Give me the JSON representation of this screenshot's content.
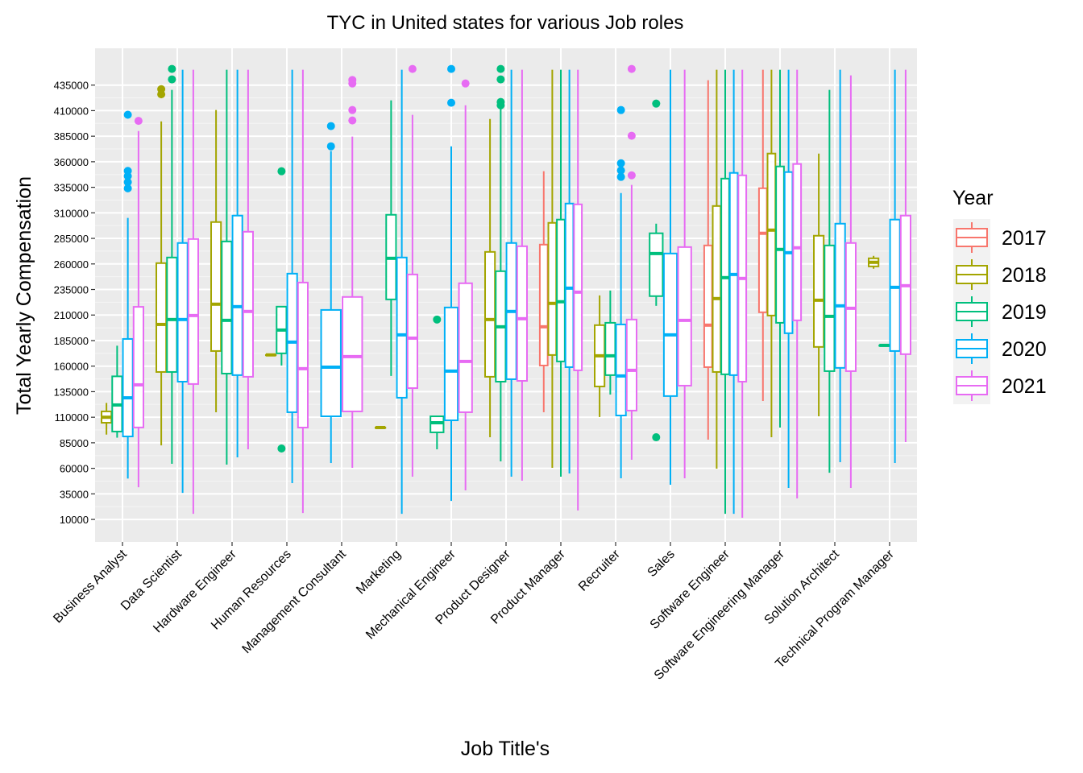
{
  "chart_data": {
    "type": "boxplot",
    "title": "TYC in United states for various Job roles",
    "x_label": "Job Title's",
    "y_label": "Total Yearly Compensation",
    "legend_title": "Year",
    "legend_position": "right",
    "grid": true,
    "categories": [
      "Business Analyst",
      "Data Scientist",
      "Hardware Engineer",
      "Human Resources",
      "Management Consultant",
      "Marketing",
      "Mechanical Engineer",
      "Product Designer",
      "Product Manager",
      "Recruiter",
      "Sales",
      "Software Engineer",
      "Software Engineering Manager",
      "Solution Architect",
      "Technical Program Manager"
    ],
    "ylim": [
      -12000,
      471000
    ],
    "yticks": [
      10000,
      35000,
      60000,
      85000,
      110000,
      135000,
      160000,
      185000,
      210000,
      235000,
      260000,
      285000,
      310000,
      335000,
      360000,
      385000,
      410000,
      435000
    ],
    "series": [
      {
        "name": "2017",
        "color": "#F8766D",
        "boxes": [
          null,
          null,
          null,
          null,
          null,
          null,
          null,
          null,
          {
            "min": 114900,
            "q1": 160600,
            "median": 198500,
            "q3": 278900,
            "max": 350700
          },
          null,
          null,
          {
            "min": 88100,
            "q1": 159000,
            "median": 200100,
            "q3": 278100,
            "max": 439800
          },
          {
            "min": 125900,
            "q1": 212700,
            "median": 290000,
            "q3": 334100,
            "max": 450000
          },
          null,
          null
        ]
      },
      {
        "name": "2018",
        "color": "#A3A500",
        "boxes": [
          {
            "min": 93000,
            "q1": 104600,
            "median": 110000,
            "q3": 115700,
            "max": 124000
          },
          {
            "min": 82500,
            "q1": 154300,
            "median": 200800,
            "q3": 260800,
            "max": 399500,
            "outliers": [
              431000,
              426000
            ]
          },
          {
            "min": 114900,
            "q1": 174800,
            "median": 220600,
            "q3": 301000,
            "max": 410600
          },
          {
            "min": 171000,
            "q1": 171000,
            "median": 171000,
            "q3": 171000,
            "max": 171000
          },
          null,
          {
            "min": 99900,
            "q1": 99900,
            "median": 99900,
            "q3": 99900,
            "max": 99900
          },
          null,
          {
            "min": 90400,
            "q1": 149600,
            "median": 205600,
            "q3": 271800,
            "max": 401900
          },
          {
            "min": 60500,
            "q1": 170900,
            "median": 221400,
            "q3": 300200,
            "max": 450000
          },
          {
            "min": 110200,
            "q1": 140100,
            "median": 170100,
            "q3": 200100,
            "max": 229200
          },
          null,
          {
            "min": 59700,
            "q1": 154300,
            "median": 226100,
            "q3": 316700,
            "max": 450000
          },
          {
            "min": 90400,
            "q1": 209500,
            "median": 293100,
            "q3": 368000,
            "max": 450000
          },
          {
            "min": 110900,
            "q1": 178800,
            "median": 224500,
            "q3": 287600,
            "max": 368000
          },
          {
            "min": 255300,
            "q1": 257600,
            "median": 261600,
            "q3": 265500,
            "max": 267900
          }
        ]
      },
      {
        "name": "2019",
        "color": "#00BF7D",
        "boxes": [
          {
            "min": 90000,
            "q1": 96000,
            "median": 122000,
            "q3": 150000,
            "max": 180000
          },
          {
            "min": 64400,
            "q1": 154300,
            "median": 205600,
            "q3": 266300,
            "max": 430300,
            "outliers": [
              450800,
              440600
            ]
          },
          {
            "min": 63600,
            "q1": 152700,
            "median": 204800,
            "q3": 282000,
            "max": 450000
          },
          {
            "min": 160600,
            "q1": 172500,
            "median": 195300,
            "q3": 218200,
            "max": 218200,
            "outliers": [
              350700,
              79400
            ]
          },
          null,
          {
            "min": 150400,
            "q1": 225300,
            "median": 265500,
            "q3": 308100,
            "max": 420100
          },
          {
            "min": 78600,
            "q1": 95200,
            "median": 104600,
            "q3": 110900,
            "max": 110900,
            "outliers": [
              205600
            ]
          },
          {
            "min": 66800,
            "q1": 144800,
            "median": 198500,
            "q3": 252900,
            "max": 414500,
            "outliers": [
              450800,
              440600,
              418500,
              415300
            ]
          },
          {
            "min": 51800,
            "q1": 164600,
            "median": 223000,
            "q3": 303400,
            "max": 450000
          },
          {
            "min": 132200,
            "q1": 151200,
            "median": 170100,
            "q3": 202400,
            "max": 234000
          },
          {
            "min": 219000,
            "q1": 228500,
            "median": 270200,
            "q3": 290000,
            "max": 299400,
            "outliers": [
              416900,
              90400
            ]
          },
          {
            "min": 15500,
            "q1": 152000,
            "median": 246600,
            "q3": 343500,
            "max": 450000
          },
          {
            "min": 99900,
            "q1": 202400,
            "median": 274200,
            "q3": 355400,
            "max": 450000
          },
          {
            "min": 55700,
            "q1": 155100,
            "median": 208700,
            "q3": 278100,
            "max": 430300
          },
          {
            "min": 180300,
            "q1": 180300,
            "median": 180300,
            "q3": 180300,
            "max": 180300
          }
        ]
      },
      {
        "name": "2020",
        "color": "#00B0F6",
        "boxes": [
          {
            "min": 50000,
            "q1": 91200,
            "median": 129000,
            "q3": 186600,
            "max": 305000,
            "outliers": [
              406000,
              351000,
              346000,
              340000,
              334000
            ]
          },
          {
            "min": 36000,
            "q1": 144800,
            "median": 205600,
            "q3": 280500,
            "max": 450000
          },
          {
            "min": 70700,
            "q1": 151200,
            "median": 218200,
            "q3": 307300,
            "max": 450000
          },
          {
            "min": 45500,
            "q1": 114900,
            "median": 183500,
            "q3": 250500,
            "max": 450000
          },
          {
            "min": 65200,
            "q1": 110900,
            "median": 159000,
            "q3": 215000,
            "max": 370400,
            "outliers": [
              394900,
              375100
            ]
          },
          {
            "min": 15500,
            "q1": 129100,
            "median": 190600,
            "q3": 266300,
            "max": 450000
          },
          {
            "min": 28100,
            "q1": 107000,
            "median": 155100,
            "q3": 217400,
            "max": 375100,
            "outliers": [
              450800,
              417700
            ]
          },
          {
            "min": 51800,
            "q1": 147200,
            "median": 213500,
            "q3": 280500,
            "max": 450000
          },
          {
            "min": 55000,
            "q1": 159000,
            "median": 236300,
            "q3": 319100,
            "max": 450000
          },
          {
            "min": 50200,
            "q1": 111700,
            "median": 150400,
            "q3": 200800,
            "max": 329400,
            "outliers": [
              410600,
              358500,
              351500,
              345200
            ]
          },
          {
            "min": 43900,
            "q1": 130700,
            "median": 190600,
            "q3": 270200,
            "max": 450000
          },
          {
            "min": 15500,
            "q1": 151200,
            "median": 249700,
            "q3": 349100,
            "max": 450000
          },
          {
            "min": 40800,
            "q1": 192200,
            "median": 271000,
            "q3": 349900,
            "max": 450000
          },
          {
            "min": 66000,
            "q1": 158300,
            "median": 219000,
            "q3": 299400,
            "max": 450000
          },
          {
            "min": 65200,
            "q1": 174800,
            "median": 237100,
            "q3": 303400,
            "max": 450000
          }
        ]
      },
      {
        "name": "2021",
        "color": "#E76BF3",
        "boxes": [
          {
            "min": 41500,
            "q1": 100000,
            "median": 141700,
            "q3": 218000,
            "max": 390000,
            "outliers": [
              400000
            ]
          },
          {
            "min": 15500,
            "q1": 142500,
            "median": 209500,
            "q3": 284400,
            "max": 450000
          },
          {
            "min": 78600,
            "q1": 149600,
            "median": 213500,
            "q3": 291500,
            "max": 450000
          },
          {
            "min": 16300,
            "q1": 99900,
            "median": 157500,
            "q3": 241800,
            "max": 450000
          },
          {
            "min": 60500,
            "q1": 115700,
            "median": 169300,
            "q3": 227700,
            "max": 384600,
            "outliers": [
              440000,
              436600,
              410600,
              400400
            ]
          },
          {
            "min": 51800,
            "q1": 138500,
            "median": 187400,
            "q3": 249700,
            "max": 405900,
            "outliers": [
              450800
            ]
          },
          {
            "min": 38400,
            "q1": 114900,
            "median": 164600,
            "q3": 241100,
            "max": 415300,
            "outliers": [
              436600
            ]
          },
          {
            "min": 47900,
            "q1": 145600,
            "median": 206400,
            "q3": 277300,
            "max": 450000
          },
          {
            "min": 18700,
            "q1": 155900,
            "median": 232400,
            "q3": 318300,
            "max": 450000
          },
          {
            "min": 68400,
            "q1": 116500,
            "median": 155900,
            "q3": 205600,
            "max": 337300,
            "outliers": [
              450800,
              385400,
              346700
            ]
          },
          {
            "min": 50200,
            "q1": 140900,
            "median": 204800,
            "q3": 276500,
            "max": 450000
          },
          {
            "min": 11600,
            "q1": 144800,
            "median": 245800,
            "q3": 346700,
            "max": 450000
          },
          {
            "min": 30500,
            "q1": 204800,
            "median": 275800,
            "q3": 357800,
            "max": 450000
          },
          {
            "min": 40800,
            "q1": 155100,
            "median": 216600,
            "q3": 280500,
            "max": 444500
          },
          {
            "min": 85700,
            "q1": 171700,
            "median": 238700,
            "q3": 307300,
            "max": 450000
          }
        ]
      }
    ]
  }
}
